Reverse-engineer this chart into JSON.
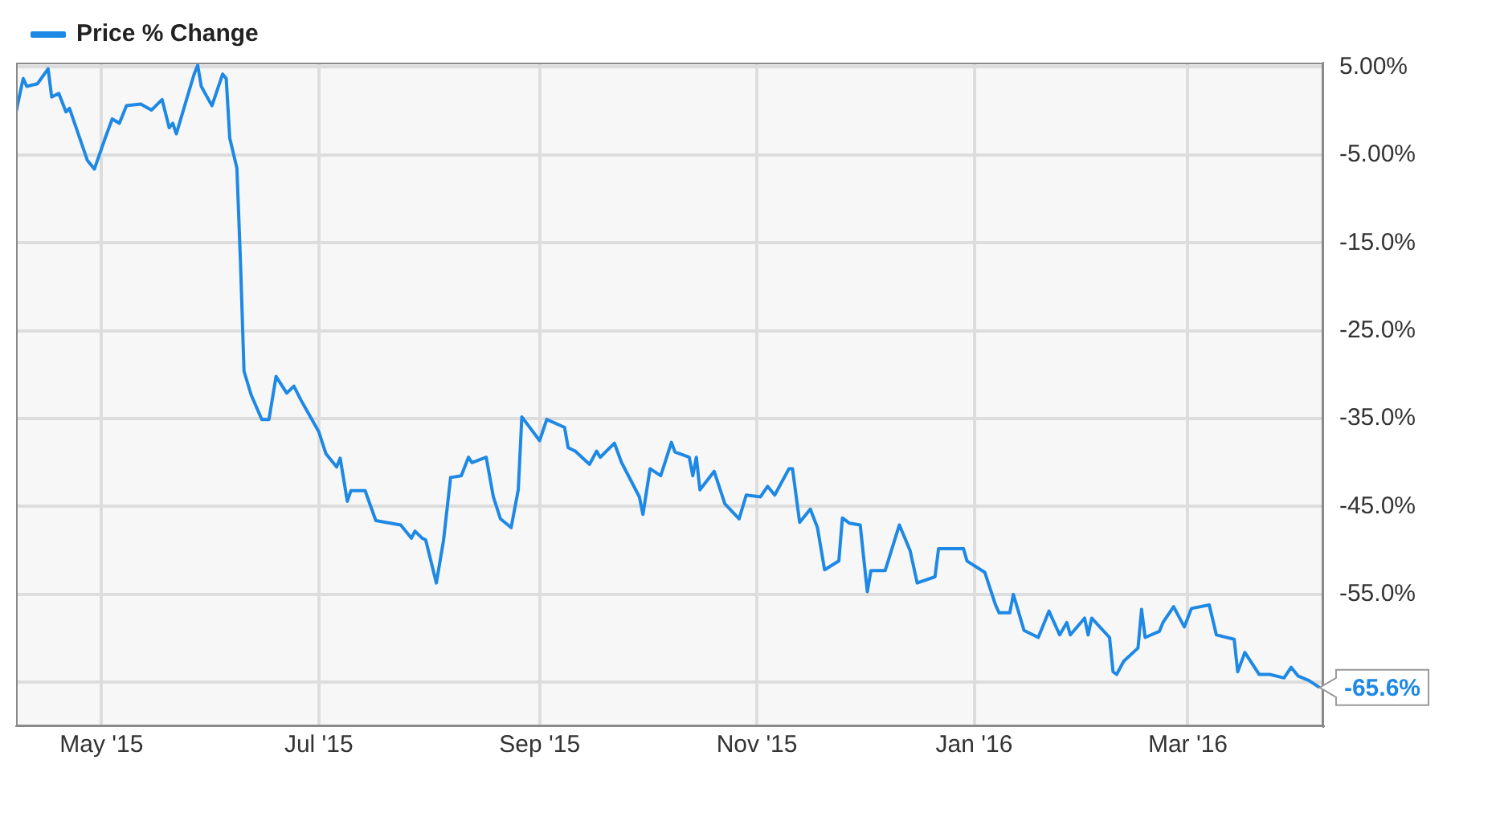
{
  "chart_data": {
    "type": "line",
    "legend": "top left",
    "grid": true,
    "marker": "none",
    "line_style": "solid",
    "xlim": [
      "2015-04-07",
      "2016-04-08"
    ],
    "xticks": [
      {
        "value": "2015-05-01",
        "label": "May '15"
      },
      {
        "value": "2015-07-01",
        "label": "Jul '15"
      },
      {
        "value": "2015-09-01",
        "label": "Sep '15"
      },
      {
        "value": "2015-11-01",
        "label": "Nov '15"
      },
      {
        "value": "2016-01-01",
        "label": "Jan '16"
      },
      {
        "value": "2016-03-01",
        "label": "Mar '16"
      }
    ],
    "ylim": [
      -70,
      5.5
    ],
    "yticks": [
      {
        "value": 5,
        "label": "5.00%"
      },
      {
        "value": -5,
        "label": "-5.00%"
      },
      {
        "value": -15,
        "label": "-15.0%"
      },
      {
        "value": -25,
        "label": "-25.0%"
      },
      {
        "value": -35,
        "label": "-35.0%"
      },
      {
        "value": -45,
        "label": "-45.0%"
      },
      {
        "value": -55,
        "label": "-55.0%"
      },
      {
        "value": -65,
        "label": null
      }
    ],
    "annotations": [
      {
        "text": "-65.6%",
        "x": "2016-04-07",
        "y": -65.6
      }
    ],
    "series": [
      {
        "name": "Price % Change",
        "color": "#1e88e5",
        "x": [
          "2015-04-07",
          "2015-04-09",
          "2015-04-10",
          "2015-04-13",
          "2015-04-16",
          "2015-04-17",
          "2015-04-19",
          "2015-04-21",
          "2015-04-22",
          "2015-04-27",
          "2015-04-29",
          "2015-05-02",
          "2015-05-04",
          "2015-05-06",
          "2015-05-08",
          "2015-05-12",
          "2015-05-15",
          "2015-05-18",
          "2015-05-20",
          "2015-05-21",
          "2015-05-22",
          "2015-05-25",
          "2015-05-27",
          "2015-05-28",
          "2015-05-29",
          "2015-06-01",
          "2015-06-04",
          "2015-06-05",
          "2015-06-06",
          "2015-06-08",
          "2015-06-09",
          "2015-06-10",
          "2015-06-12",
          "2015-06-15",
          "2015-06-17",
          "2015-06-19",
          "2015-06-22",
          "2015-06-24",
          "2015-06-26",
          "2015-07-01",
          "2015-07-03",
          "2015-07-06",
          "2015-07-07",
          "2015-07-09",
          "2015-07-10",
          "2015-07-14",
          "2015-07-17",
          "2015-07-24",
          "2015-07-27",
          "2015-07-28",
          "2015-07-30",
          "2015-07-31",
          "2015-08-03",
          "2015-08-05",
          "2015-08-07",
          "2015-08-10",
          "2015-08-12",
          "2015-08-13",
          "2015-08-17",
          "2015-08-19",
          "2015-08-21",
          "2015-08-24",
          "2015-08-26",
          "2015-08-27",
          "2015-09-01",
          "2015-09-03",
          "2015-09-08",
          "2015-09-09",
          "2015-09-11",
          "2015-09-15",
          "2015-09-17",
          "2015-09-18",
          "2015-09-22",
          "2015-09-24",
          "2015-09-29",
          "2015-09-30",
          "2015-10-02",
          "2015-10-05",
          "2015-10-08",
          "2015-10-09",
          "2015-10-13",
          "2015-10-14",
          "2015-10-15",
          "2015-10-16",
          "2015-10-20",
          "2015-10-23",
          "2015-10-27",
          "2015-10-29",
          "2015-11-02",
          "2015-11-04",
          "2015-11-06",
          "2015-11-10",
          "2015-11-11",
          "2015-11-13",
          "2015-11-16",
          "2015-11-18",
          "2015-11-20",
          "2015-11-24",
          "2015-11-25",
          "2015-11-27",
          "2015-11-30",
          "2015-12-02",
          "2015-12-03",
          "2015-12-07",
          "2015-12-11",
          "2015-12-14",
          "2015-12-16",
          "2015-12-21",
          "2015-12-22",
          "2015-12-29",
          "2015-12-30",
          "2016-01-04",
          "2016-01-07",
          "2016-01-08",
          "2016-01-11",
          "2016-01-12",
          "2016-01-15",
          "2016-01-19",
          "2016-01-22",
          "2016-01-25",
          "2016-01-27",
          "2016-01-28",
          "2016-02-01",
          "2016-02-02",
          "2016-02-03",
          "2016-02-08",
          "2016-02-09",
          "2016-02-10",
          "2016-02-12",
          "2016-02-16",
          "2016-02-17",
          "2016-02-18",
          "2016-02-22",
          "2016-02-23",
          "2016-02-26",
          "2016-02-29",
          "2016-03-02",
          "2016-03-07",
          "2016-03-09",
          "2016-03-14",
          "2016-03-15",
          "2016-03-17",
          "2016-03-21",
          "2016-03-24",
          "2016-03-28",
          "2016-03-30",
          "2016-04-01",
          "2016-04-04",
          "2016-04-07"
        ],
        "values": [
          -0.1,
          3.7,
          2.8,
          3.1,
          4.8,
          1.6,
          2.0,
          -0.1,
          0.3,
          -5.6,
          -6.6,
          -3.1,
          -0.9,
          -1.4,
          0.6,
          0.8,
          0.1,
          1.3,
          -1.9,
          -1.4,
          -2.6,
          1.5,
          4.2,
          5.2,
          2.8,
          0.6,
          4.2,
          3.7,
          -3.1,
          -6.5,
          -17.1,
          -29.6,
          -32.3,
          -35.1,
          -35.1,
          -30.2,
          -32.1,
          -31.3,
          -32.9,
          -36.5,
          -39.0,
          -40.5,
          -39.5,
          -44.4,
          -43.2,
          -43.2,
          -46.6,
          -47.1,
          -48.6,
          -47.8,
          -48.6,
          -48.8,
          -53.7,
          -48.9,
          -41.7,
          -41.5,
          -39.4,
          -40.0,
          -39.4,
          -43.9,
          -46.4,
          -47.4,
          -43.1,
          -34.8,
          -37.5,
          -35.1,
          -36.0,
          -38.3,
          -38.7,
          -40.2,
          -38.7,
          -39.4,
          -37.8,
          -40.0,
          -43.9,
          -45.9,
          -40.7,
          -41.5,
          -37.7,
          -38.8,
          -39.4,
          -41.5,
          -39.4,
          -43.1,
          -41.0,
          -44.7,
          -46.4,
          -43.7,
          -43.9,
          -42.7,
          -43.7,
          -40.7,
          -40.7,
          -46.8,
          -45.3,
          -47.4,
          -52.2,
          -51.2,
          -46.3,
          -46.9,
          -47.1,
          -54.7,
          -52.3,
          -52.3,
          -47.1,
          -50.0,
          -53.7,
          -53.0,
          -49.8,
          -49.8,
          -51.2,
          -52.5,
          -56.2,
          -57.1,
          -57.1,
          -55.0,
          -59.1,
          -59.9,
          -56.9,
          -59.6,
          -58.2,
          -59.6,
          -57.7,
          -59.6,
          -57.7,
          -59.9,
          -63.8,
          -64.1,
          -62.6,
          -61.1,
          -56.7,
          -59.9,
          -59.2,
          -58.2,
          -56.4,
          -58.7,
          -56.6,
          -56.2,
          -59.6,
          -60.1,
          -63.8,
          -61.6,
          -64.1,
          -64.1,
          -64.5,
          -63.3,
          -64.3,
          -64.8,
          -65.6
        ]
      }
    ]
  }
}
